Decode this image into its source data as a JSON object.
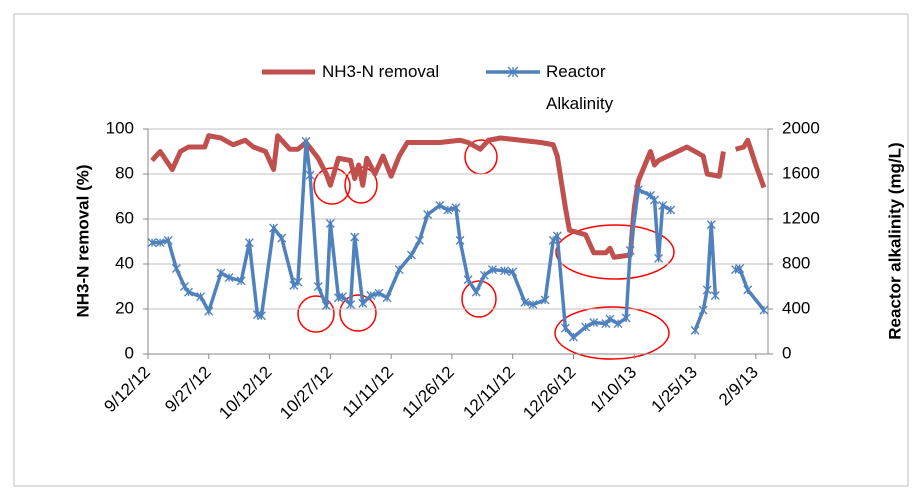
{
  "chart_data": {
    "type": "line",
    "ylabel": "NH3-N removal (%)",
    "y2label": "Reactor alkalinity  (mg/L)",
    "xlim": [
      "9/12/12",
      "2/12/13"
    ],
    "xticks": [
      "9/12/12",
      "9/27/12",
      "10/12/12",
      "10/27/12",
      "11/11/12",
      "11/26/12",
      "12/11/12",
      "12/26/12",
      "1/10/13",
      "1/25/13",
      "2/9/13"
    ],
    "ylim": [
      0,
      100
    ],
    "yticks": [
      0,
      20,
      40,
      60,
      80,
      100
    ],
    "y2lim": [
      0,
      2000
    ],
    "y2ticks": [
      0,
      400,
      800,
      1200,
      1600,
      2000
    ],
    "grid": true,
    "legend": "top",
    "series": [
      {
        "name": "NH3-N removal",
        "color": "#c0504d",
        "axis": "y",
        "x": [
          "9/13/12",
          "9/15/12",
          "9/18/12",
          "9/20/12",
          "9/22/12",
          "9/26/12",
          "9/27/12",
          "9/30/12",
          "10/3/12",
          "10/6/12",
          "10/8/12",
          "10/11/12",
          "10/13/12",
          "10/14/12",
          "10/17/12",
          "10/19/12",
          "10/21/12",
          "10/24/12",
          "10/26/12",
          "10/27/12",
          "10/29/12",
          "11/1/12",
          "11/2/12",
          "11/3/12",
          "11/4/12",
          "11/5/12",
          "11/7/12",
          "11/9/12",
          "11/11/12",
          "11/13/12",
          "11/15/12",
          "11/23/12",
          "11/28/12",
          "11/30/12",
          "12/3/12",
          "12/5/12",
          "12/8/12",
          "12/13/12",
          "12/18/12",
          "12/21/12",
          "12/22/12",
          "12/24/12",
          "12/25/12",
          "12/29/12",
          "12/31/12",
          "1/3/13",
          "1/4/13",
          "1/5/13",
          "1/9/13",
          "1/10/13",
          "1/11/13",
          "1/14/13",
          "1/15/13",
          "1/16/13",
          "1/23/13",
          "1/27/13",
          "1/28/13",
          "1/31/13",
          "2/1/13",
          "2/3/13",
          "2/4/13",
          "2/6/13",
          "2/7/13",
          "2/9/13",
          "2/11/13"
        ],
        "values": [
          86,
          90,
          82,
          90,
          92,
          92,
          97,
          96,
          93,
          95,
          92,
          90,
          82,
          97,
          91,
          91,
          94,
          87,
          80,
          75,
          87,
          86,
          78,
          84,
          75,
          87,
          80,
          88,
          79,
          88,
          94,
          94,
          95,
          94,
          91,
          95,
          96,
          95,
          94,
          93,
          88,
          65,
          55,
          53,
          45,
          45,
          47,
          43,
          44,
          65,
          77,
          90,
          84,
          86,
          92,
          88,
          80,
          79,
          90,
          null,
          91,
          92,
          95,
          84,
          74
        ]
      },
      {
        "name": "Reactor Alkalinity",
        "color": "#4f81bd",
        "axis": "y2",
        "x": [
          "9/13/12",
          "9/15/12",
          "9/17/12",
          "9/19/12",
          "9/21/12",
          "9/22/12",
          "9/25/12",
          "9/27/12",
          "9/30/12",
          "10/2/12",
          "10/5/12",
          "10/7/12",
          "10/9/12",
          "10/10/12",
          "10/13/12",
          "10/15/12",
          "10/18/12",
          "10/19/12",
          "10/21/12",
          "10/22/12",
          "10/24/12",
          "10/26/12",
          "10/27/12",
          "10/29/12",
          "10/30/12",
          "11/1/12",
          "11/2/12",
          "11/4/12",
          "11/6/12",
          "11/8/12",
          "11/10/12",
          "11/13/12",
          "11/16/12",
          "11/18/12",
          "11/20/12",
          "11/23/12",
          "11/25/12",
          "11/27/12",
          "11/28/12",
          "11/30/12",
          "12/2/12",
          "12/4/12",
          "12/6/12",
          "12/9/12",
          "12/11/12",
          "12/14/12",
          "12/16/12",
          "12/19/12",
          "12/21/12",
          "12/22/12",
          "12/24/12",
          "12/26/12",
          "12/29/12",
          "12/31/12",
          "1/3/13",
          "1/4/13",
          "1/6/13",
          "1/8/13",
          "1/9/13",
          "1/11/13",
          "1/14/13",
          "1/15/13",
          "1/16/13",
          "1/17/13",
          "1/19/13",
          "1/22/13",
          "1/25/13",
          "1/27/13",
          "1/28/13",
          "1/29/13",
          "1/30/13",
          "2/2/13",
          "2/4/13",
          "2/5/13",
          "2/7/13",
          "2/11/13"
        ],
        "values": [
          990,
          990,
          1010,
          760,
          600,
          550,
          510,
          380,
          720,
          680,
          650,
          990,
          350,
          340,
          1120,
          1030,
          610,
          640,
          1890,
          1590,
          600,
          430,
          1160,
          500,
          510,
          440,
          1040,
          450,
          520,
          540,
          500,
          750,
          880,
          1010,
          1240,
          1320,
          1280,
          1300,
          1010,
          660,
          550,
          700,
          750,
          740,
          730,
          460,
          440,
          480,
          1010,
          1050,
          230,
          150,
          240,
          280,
          270,
          310,
          270,
          320,
          920,
          1460,
          1410,
          1370,
          850,
          1320,
          1280,
          null,
          210,
          390,
          570,
          1150,
          520,
          null,
          750,
          760,
          570,
          390
        ]
      }
    ]
  }
}
